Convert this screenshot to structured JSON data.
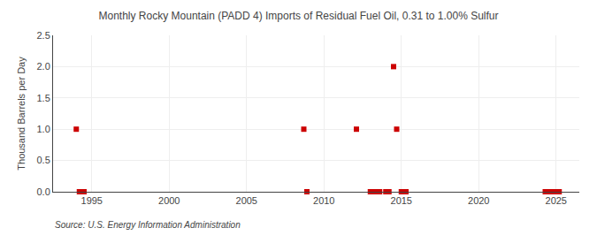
{
  "chart_data": {
    "type": "scatter",
    "title": "Monthly Rocky Mountain (PADD 4) Imports of Residual Fuel Oil, 0.31 to 1.00% Sulfur",
    "ylabel": "Thousand Barrels per Day",
    "annotation": "Source: U.S. Energy Information Administration",
    "x": [
      1994.0,
      1994.2,
      1994.5,
      2008.7,
      2008.9,
      2012.1,
      2013.0,
      2013.3,
      2013.6,
      2014.0,
      2014.2,
      2014.5,
      2014.7,
      2015.0,
      2015.3,
      2024.3,
      2024.6,
      2024.8,
      2025.0,
      2025.2
    ],
    "values": [
      1.0,
      0.0,
      0.0,
      1.0,
      0.0,
      1.0,
      0.0,
      0.0,
      0.0,
      0.0,
      0.0,
      2.0,
      1.0,
      0.0,
      0.0,
      0.0,
      0.0,
      0.0,
      0.0,
      0.0
    ],
    "color": "#cc0000",
    "marker": "square",
    "xlim": [
      1992.5,
      2026.5
    ],
    "xticks": [
      1995,
      2000,
      2005,
      2010,
      2015,
      2020,
      2025
    ],
    "ylim": [
      0,
      2.5
    ],
    "yticks": [
      {
        "value": 0,
        "label": "0.0"
      },
      0.5,
      {
        "value": 1,
        "label": "1.0"
      },
      1.5,
      {
        "value": 2,
        "label": "2.0"
      },
      2.5
    ],
    "grid": true
  }
}
